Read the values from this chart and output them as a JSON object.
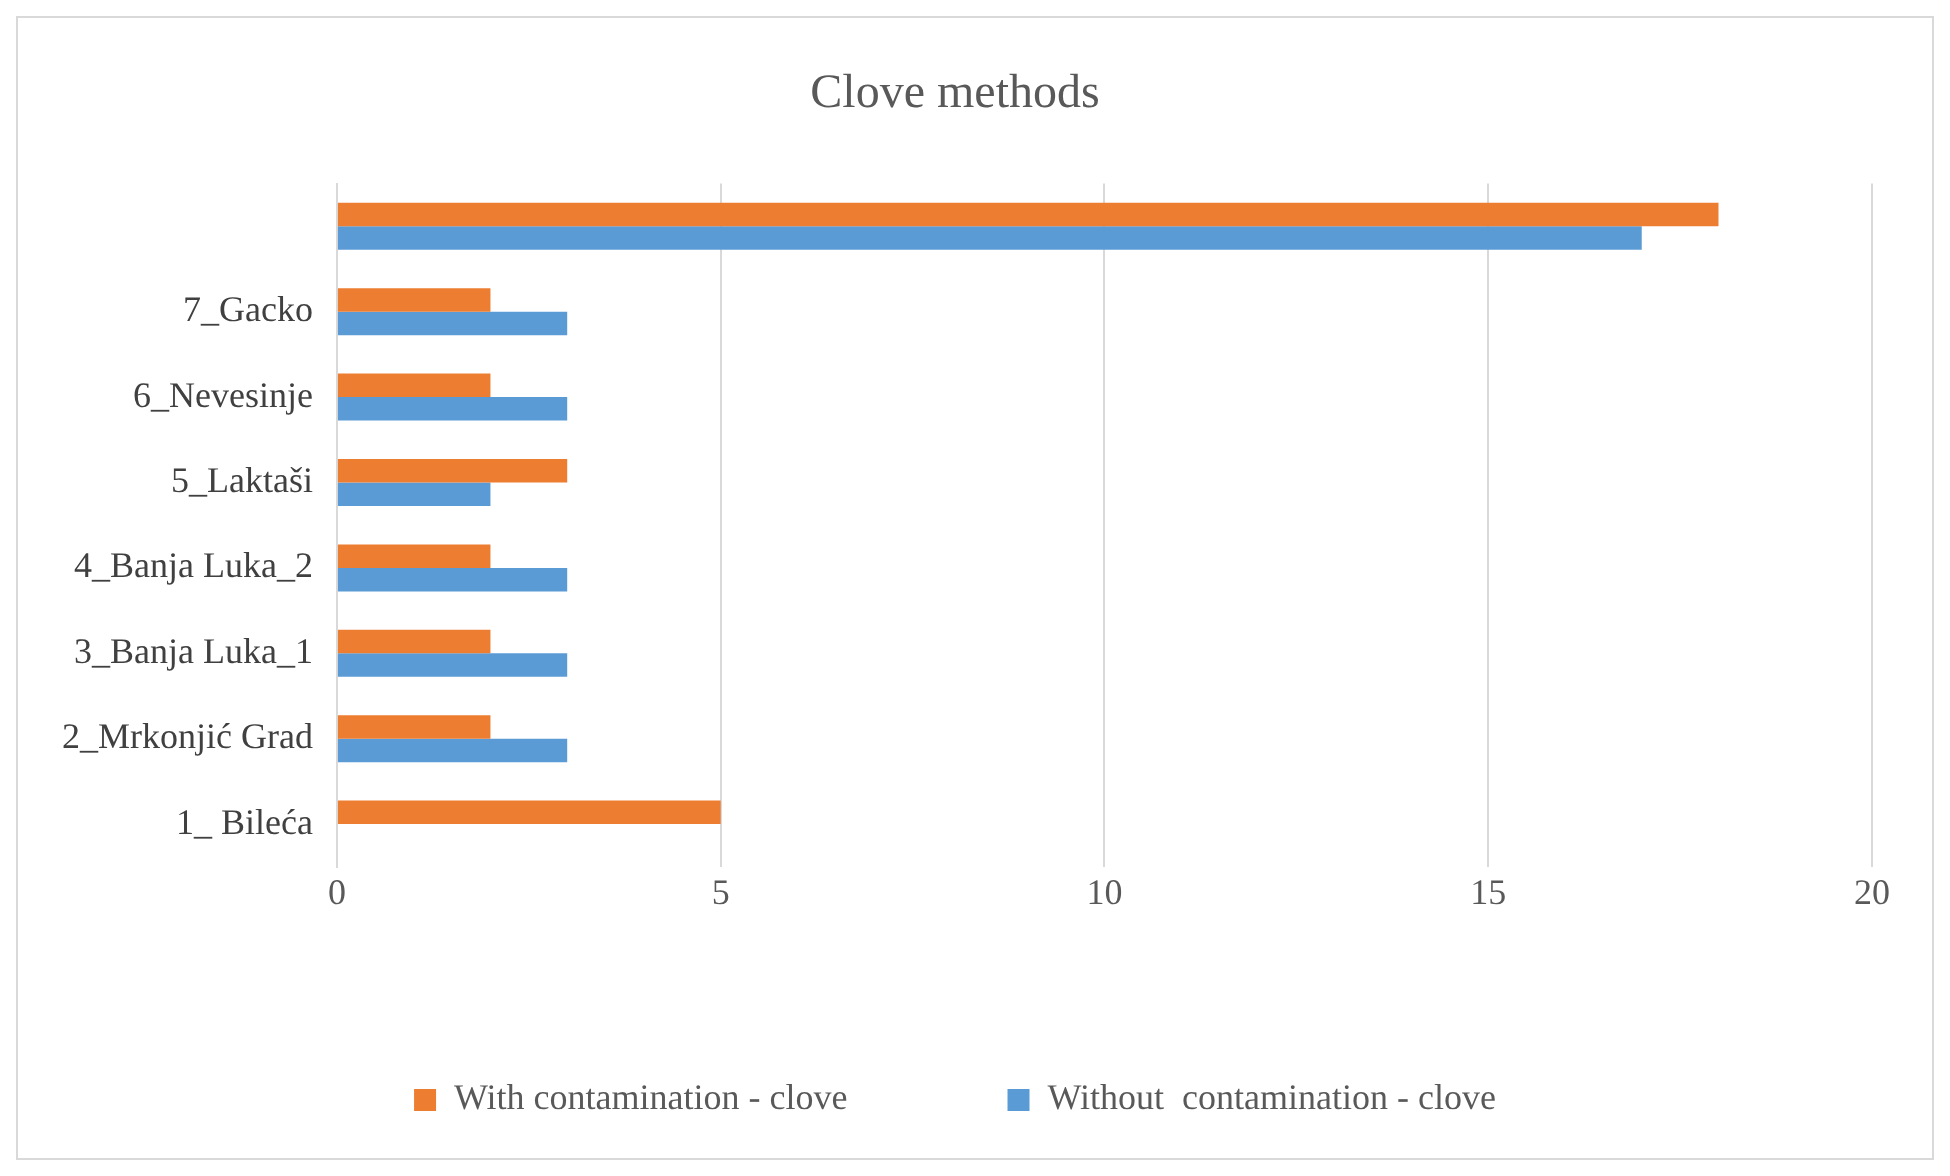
{
  "chart_data": {
    "type": "bar",
    "orientation": "horizontal",
    "title": "Clove methods",
    "categories": [
      null,
      "7_Gacko",
      "6_Nevesinje",
      "5_Laktaši",
      "4_Banja Luka_2",
      "3_Banja Luka_1",
      "2_Mrkonjić Grad",
      "1_ Bileća"
    ],
    "series": [
      {
        "name": "With contamination - clove",
        "color": "#ed7d31",
        "values": [
          18,
          2,
          2,
          3,
          2,
          2,
          2,
          5
        ]
      },
      {
        "name": "Without  contamination - clove",
        "color": "#5b9bd5",
        "values": [
          17,
          3,
          3,
          2,
          3,
          3,
          3,
          0
        ]
      }
    ],
    "xlim": [
      0,
      20
    ],
    "xticks": [
      0,
      5,
      10,
      15,
      20
    ],
    "grid": "x",
    "legend": "bottom"
  }
}
